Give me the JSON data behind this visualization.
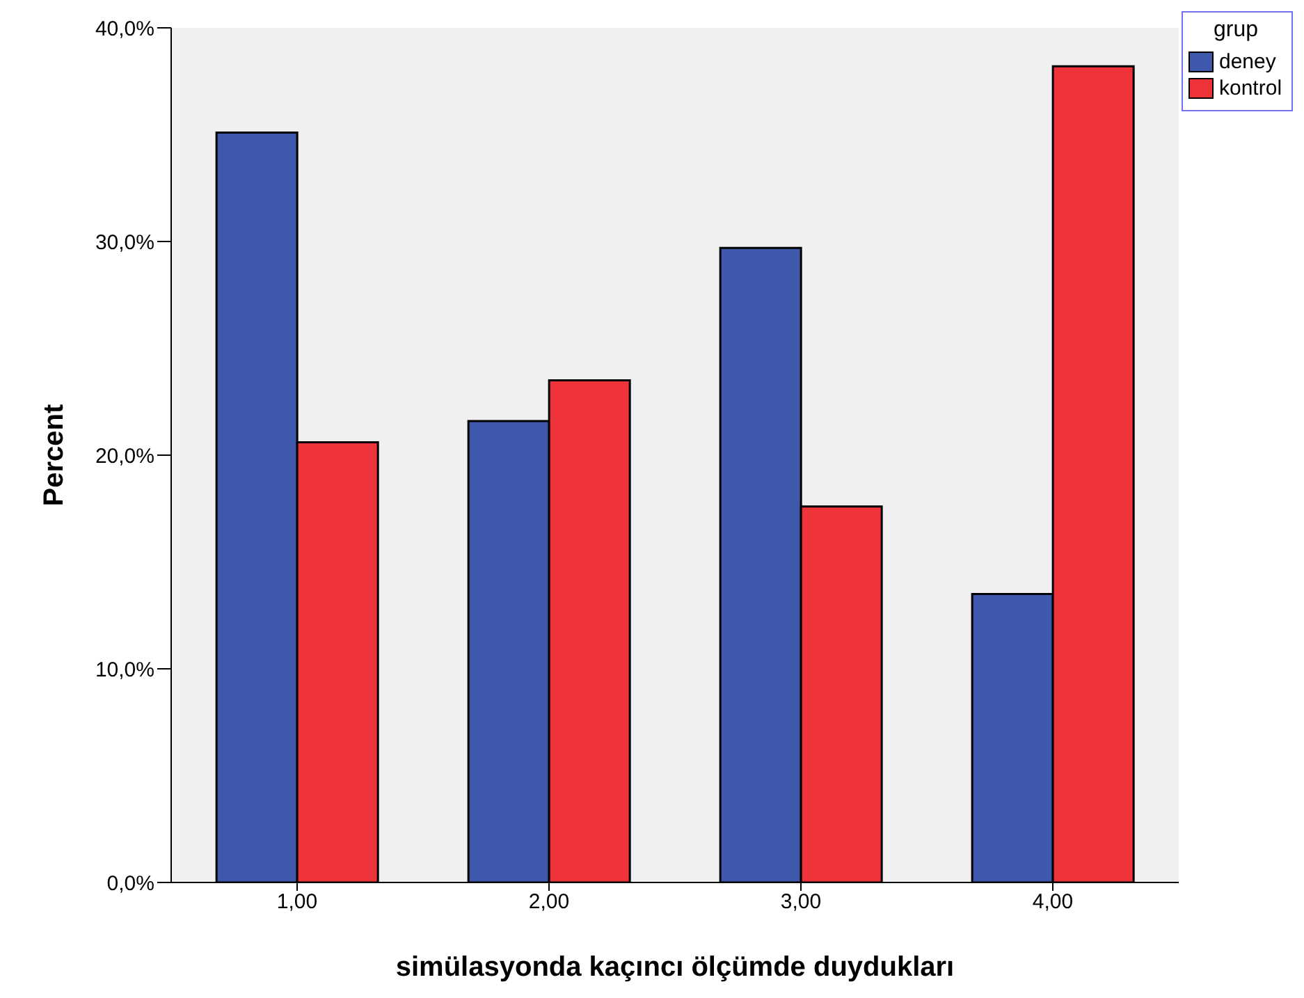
{
  "chart_data": {
    "type": "bar",
    "xlabel": "simülasyonda kaçıncı ölçümde duydukları",
    "ylabel": "Percent",
    "legend_title": "grup",
    "categories": [
      "1,00",
      "2,00",
      "3,00",
      "4,00"
    ],
    "series": [
      {
        "name": "deney",
        "color": "#3e58ac",
        "values": [
          35.1,
          21.6,
          29.7,
          13.5
        ]
      },
      {
        "name": "kontrol",
        "color": "#ef333b",
        "values": [
          20.6,
          23.5,
          17.6,
          38.2
        ]
      }
    ],
    "ylim": [
      0,
      40
    ],
    "yticks": [
      {
        "value": 0,
        "label": "0,0%"
      },
      {
        "value": 10,
        "label": "10,0%"
      },
      {
        "value": 20,
        "label": "20,0%"
      },
      {
        "value": 30,
        "label": "30,0%"
      },
      {
        "value": 40,
        "label": "40,0%"
      }
    ],
    "legend": "top right"
  }
}
